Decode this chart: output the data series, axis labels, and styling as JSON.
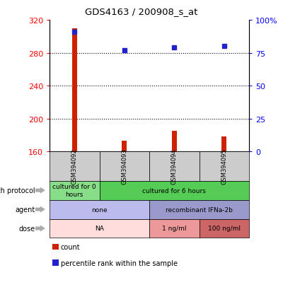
{
  "title": "GDS4163 / 200908_s_at",
  "samples": [
    "GSM394092",
    "GSM394093",
    "GSM394094",
    "GSM394095"
  ],
  "count_values": [
    310,
    173,
    185,
    178
  ],
  "count_base": 160,
  "percentile_values": [
    91,
    77,
    79,
    80
  ],
  "ylim_left": [
    160,
    320
  ],
  "ylim_right": [
    0,
    100
  ],
  "yticks_left": [
    160,
    200,
    240,
    280,
    320
  ],
  "yticks_right": [
    0,
    25,
    50,
    75,
    100
  ],
  "bar_color": "#cc2200",
  "dot_color": "#2222cc",
  "sample_box_color": "#cccccc",
  "growth_protocol_segs": [
    {
      "label": "cultured for 0\nhours",
      "color": "#88dd88",
      "start": 0,
      "end": 1
    },
    {
      "label": "cultured for 6 hours",
      "color": "#55cc55",
      "start": 1,
      "end": 4
    }
  ],
  "agent_segs": [
    {
      "label": "none",
      "color": "#bbbbee",
      "start": 0,
      "end": 2
    },
    {
      "label": "recombinant IFNa-2b",
      "color": "#9999cc",
      "start": 2,
      "end": 4
    }
  ],
  "dose_segs": [
    {
      "label": "NA",
      "color": "#ffdddd",
      "start": 0,
      "end": 2
    },
    {
      "label": "1 ng/ml",
      "color": "#ee9999",
      "start": 2,
      "end": 3
    },
    {
      "label": "100 ng/ml",
      "color": "#cc6666",
      "start": 3,
      "end": 4
    }
  ],
  "row_labels": [
    "growth protocol",
    "agent",
    "dose"
  ],
  "legend_items": [
    {
      "color": "#cc2200",
      "label": "count"
    },
    {
      "color": "#2222cc",
      "label": "percentile rank within the sample"
    }
  ]
}
